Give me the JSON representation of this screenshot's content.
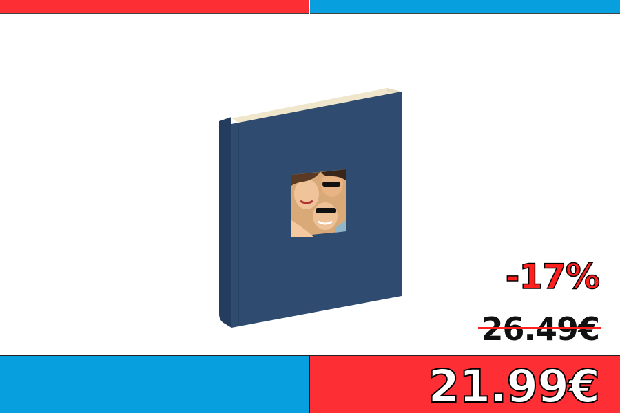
{
  "pricing": {
    "discount": "-17%",
    "old_price": "26.49€",
    "new_price": "21.99€"
  },
  "colors": {
    "red": "#fe2e35",
    "blue": "#079fdd",
    "album_cover": "#2e4a6e"
  }
}
